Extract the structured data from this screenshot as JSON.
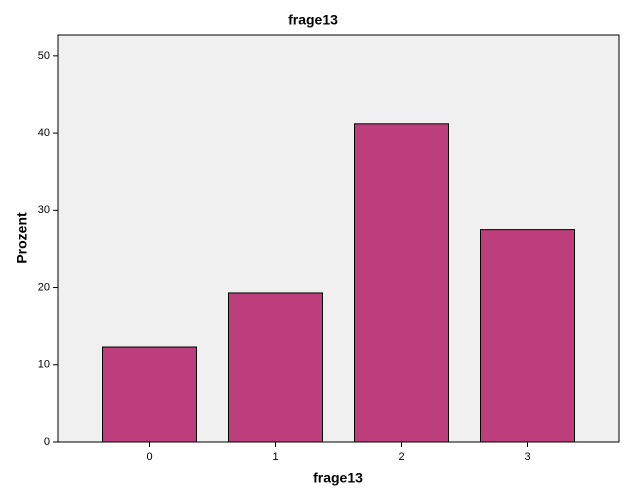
{
  "chart_data": {
    "type": "bar",
    "title": "frage13",
    "x_label": "frage13",
    "y_label": "Prozent",
    "categories": [
      "0",
      "1",
      "2",
      "3"
    ],
    "values": [
      12.3,
      19.3,
      41.2,
      27.5
    ],
    "color": "#bc3f7c",
    "ylim": [
      0,
      52.7
    ],
    "yticks": [
      0,
      10,
      20,
      30,
      40,
      50
    ]
  }
}
